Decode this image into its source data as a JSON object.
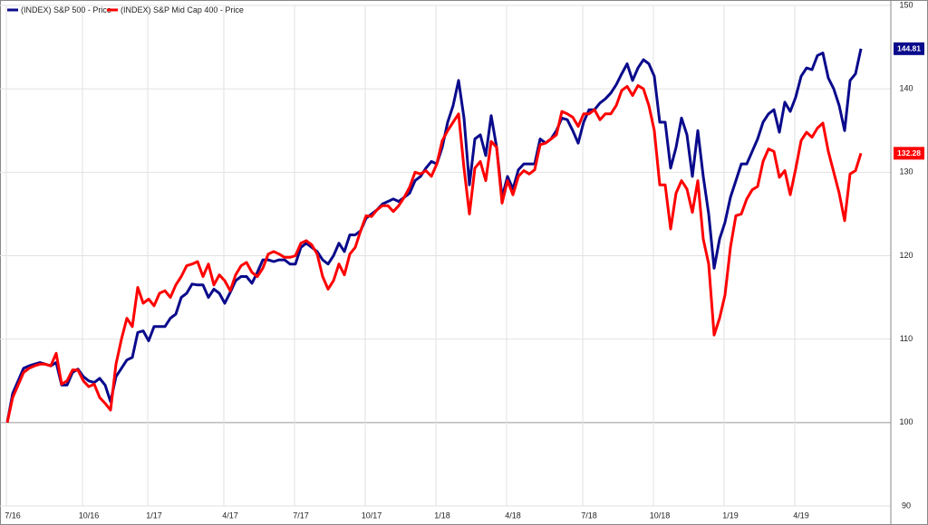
{
  "chart_data": {
    "type": "line",
    "categories": [
      null,
      "7/16",
      null,
      null,
      null,
      null,
      null,
      null,
      null,
      null,
      null,
      null,
      null,
      null,
      null,
      "10/16",
      null,
      null,
      null,
      null,
      null,
      null,
      null,
      null,
      null,
      null,
      null,
      "1/17",
      null,
      null,
      null,
      null,
      null,
      null,
      null,
      null,
      null,
      null,
      null,
      null,
      null,
      "4/17",
      null,
      null,
      null,
      null,
      null,
      null,
      null,
      null,
      null,
      null,
      null,
      null,
      "7/17",
      null,
      null,
      null,
      null,
      null,
      null,
      null,
      null,
      null,
      null,
      null,
      null,
      "10/17",
      null,
      null,
      null,
      null,
      null,
      null,
      null,
      null,
      null,
      null,
      null,
      null,
      "1/18",
      null,
      null,
      null,
      null,
      null,
      null,
      null,
      null,
      null,
      null,
      null,
      null,
      "4/18",
      null,
      null,
      null,
      null,
      null,
      null,
      null,
      null,
      null,
      null,
      null,
      null,
      null,
      "7/18",
      null,
      null,
      null,
      null,
      null,
      null,
      null,
      null,
      null,
      null,
      null,
      null,
      "10/18",
      null,
      null,
      null,
      null,
      null,
      null,
      null,
      null,
      null,
      null,
      null,
      null,
      "1/19",
      null,
      null,
      null,
      null,
      null,
      null,
      null,
      null,
      null,
      null,
      null,
      null,
      "4/19",
      null,
      null,
      null,
      null,
      null,
      null,
      null,
      null,
      null,
      null,
      null
    ],
    "series": [
      {
        "name": "(INDEX) S&P 500 - Price",
        "color": "#0a0a8c",
        "values": [
          100,
          103.5,
          105,
          106.5,
          106.8,
          107,
          107.2,
          107,
          106.8,
          107.2,
          104.5,
          104.5,
          106,
          106.4,
          105.5,
          105,
          104.8,
          105.3,
          104.5,
          102.5,
          105.5,
          106.5,
          107.5,
          107.8,
          110.8,
          111,
          109.8,
          111.5,
          111.5,
          111.5,
          112.5,
          113,
          115,
          115.5,
          116.6,
          116.5,
          116.5,
          115,
          116,
          115.5,
          114.3,
          115.6,
          117,
          117.5,
          117.5,
          116.7,
          118,
          119.5,
          119.5,
          119.3,
          119.5,
          119.5,
          119,
          119,
          121,
          121.5,
          121,
          120.5,
          119.5,
          119,
          120,
          121.5,
          120.5,
          122.5,
          122.5,
          123,
          124.5,
          125,
          125.5,
          126.2,
          126.5,
          126.8,
          126.5,
          127,
          127.5,
          129,
          129.5,
          130.5,
          131.3,
          131,
          133,
          136,
          138,
          141,
          136.5,
          128.5,
          134,
          134.5,
          132,
          136.8,
          133,
          127,
          129.5,
          128,
          130.3,
          131,
          131,
          131,
          134,
          133.5,
          134,
          135,
          136.5,
          136.3,
          135,
          133.5,
          136,
          137.5,
          137.5,
          138.3,
          138.8,
          139.5,
          140.5,
          141.8,
          143,
          141,
          142.5,
          143.5,
          143,
          141.5,
          136,
          136,
          130.5,
          133,
          136.5,
          134.5,
          129.5,
          135,
          129.5,
          125,
          118.5,
          122,
          124,
          127,
          129,
          131,
          131,
          132.5,
          134,
          136,
          137,
          137.5,
          134.8,
          138.4,
          137.3,
          139,
          141.5,
          142.5,
          142.3,
          144,
          144.3,
          141.3,
          140,
          138,
          135,
          141,
          141.8,
          144.81
        ]
      },
      {
        "name": "(INDEX) S&P Mid Cap 400 - Price",
        "color": "#ff0000",
        "values": [
          100,
          103,
          104.5,
          106,
          106.5,
          106.8,
          107,
          107,
          106.8,
          108.3,
          104.6,
          105,
          106.3,
          106.3,
          105,
          104.3,
          104.6,
          103,
          102.3,
          101.5,
          107,
          110,
          112.5,
          111.5,
          116.2,
          114.3,
          114.8,
          114,
          115.5,
          115.8,
          115,
          116.5,
          117.5,
          118.8,
          119,
          119.3,
          117.5,
          119,
          116.5,
          117.7,
          117,
          115.8,
          117.7,
          118.8,
          119.2,
          118,
          117.5,
          118.5,
          120.2,
          120.5,
          120.2,
          119.8,
          119.8,
          120,
          121.5,
          121.8,
          121.3,
          120.2,
          117.5,
          116,
          117,
          119,
          117.7,
          120.2,
          121,
          123,
          124.8,
          124.7,
          125.5,
          126,
          126,
          125.3,
          126,
          127,
          128.2,
          130,
          129.8,
          130.2,
          129.5,
          131,
          133.8,
          135,
          136,
          137,
          130.5,
          125,
          130.5,
          131.3,
          129,
          133.7,
          133,
          126.3,
          129,
          127.3,
          129.5,
          130.2,
          129.8,
          130.3,
          133.3,
          133.5,
          134,
          134.5,
          137.3,
          137,
          136.6,
          135.5,
          137,
          137,
          137.5,
          136.3,
          137,
          137,
          138,
          139.8,
          140.3,
          139.2,
          140.4,
          140,
          138,
          135,
          128.5,
          128.5,
          123.2,
          127.5,
          129,
          128,
          125.2,
          129,
          122,
          119,
          110.5,
          112.5,
          115.3,
          121,
          124.8,
          125,
          126.8,
          127.9,
          128.3,
          131.3,
          132.8,
          132.5,
          129.4,
          130.2,
          127.3,
          130.4,
          133.8,
          134.8,
          134.2,
          135.3,
          135.9,
          132.5,
          130,
          127.5,
          124.2,
          129.8,
          130.2,
          132.28
        ]
      }
    ],
    "ylim": [
      90,
      150
    ],
    "yticks": [
      90,
      100,
      110,
      120,
      130,
      140,
      150
    ],
    "grid": true,
    "legend": "top-left"
  }
}
